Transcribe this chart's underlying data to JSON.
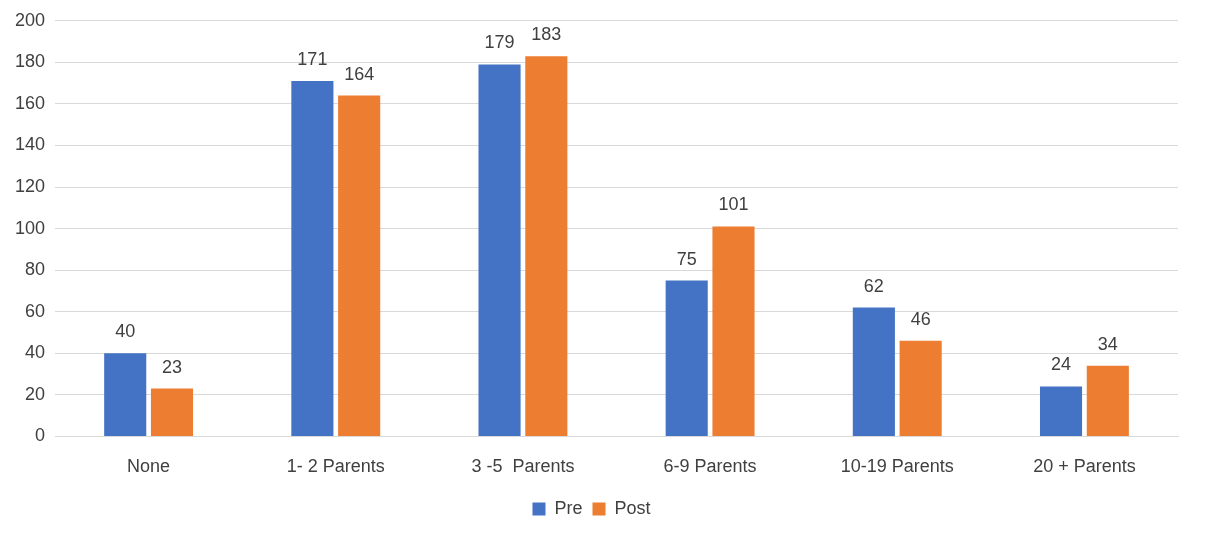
{
  "chart_data": {
    "type": "bar",
    "categories": [
      "None",
      "1- 2 Parents",
      "3 -5  Parents",
      "6-9 Parents",
      "10-19 Parents",
      "20 + Parents"
    ],
    "series": [
      {
        "name": "Pre",
        "color": "#4472c4",
        "values": [
          40,
          171,
          179,
          75,
          62,
          24
        ]
      },
      {
        "name": "Post",
        "color": "#ed7d31",
        "values": [
          23,
          164,
          183,
          101,
          46,
          34
        ]
      }
    ],
    "ylim": [
      0,
      200
    ],
    "yticks": [
      0,
      20,
      40,
      60,
      80,
      100,
      120,
      140,
      160,
      180,
      200
    ],
    "grid": "y",
    "legend": "bottom",
    "data_labels": true
  }
}
